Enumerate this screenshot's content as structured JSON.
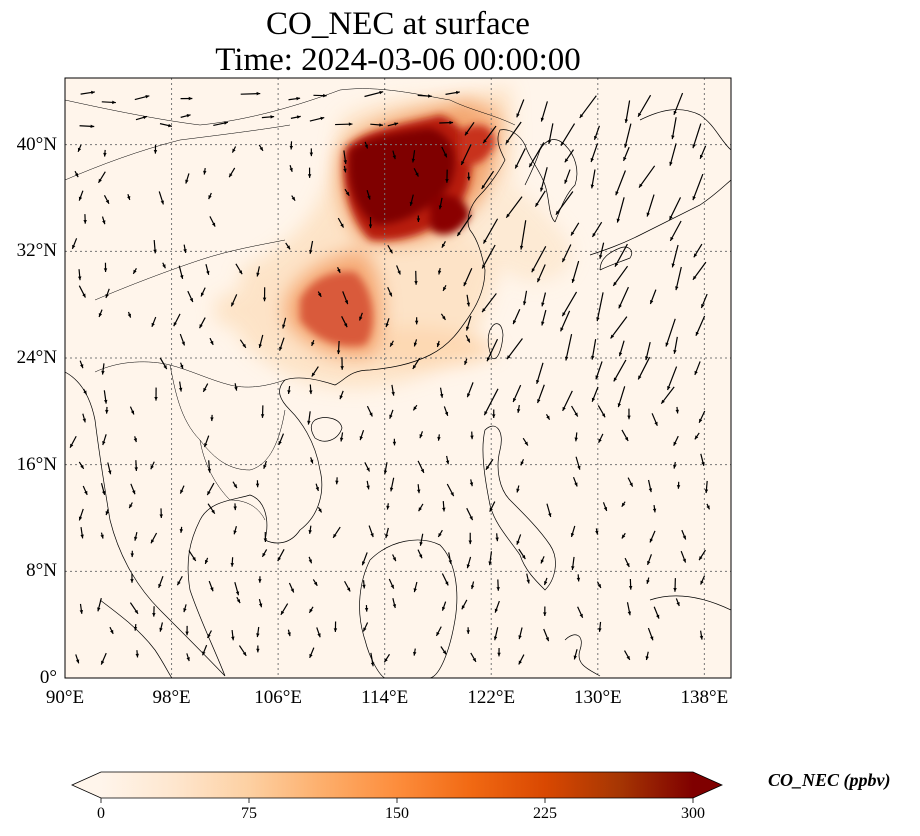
{
  "title": "CO_NEC at surface",
  "subtitle": "Time: 2024-03-06 00:00:00",
  "map": {
    "lon_range": [
      90,
      140
    ],
    "lat_range": [
      0,
      45
    ],
    "lat_ticks": [
      {
        "value": 0,
        "label": "0°"
      },
      {
        "value": 8,
        "label": "8°N"
      },
      {
        "value": 16,
        "label": "16°N"
      },
      {
        "value": 24,
        "label": "24°N"
      },
      {
        "value": 32,
        "label": "32°N"
      },
      {
        "value": 40,
        "label": "40°N"
      }
    ],
    "lon_ticks": [
      {
        "value": 90,
        "label": "90°E"
      },
      {
        "value": 98,
        "label": "98°E"
      },
      {
        "value": 106,
        "label": "106°E"
      },
      {
        "value": 114,
        "label": "114°E"
      },
      {
        "value": 122,
        "label": "122°E"
      },
      {
        "value": 130,
        "label": "130°E"
      },
      {
        "value": 138,
        "label": "138°E"
      }
    ],
    "gridlines": true,
    "background_color": "#fff5eb",
    "coastline_color": "#000000"
  },
  "colorbar": {
    "label": "CO_NEC (ppbv)",
    "min": 0,
    "max": 300,
    "ticks": [
      0,
      75,
      150,
      225,
      300
    ],
    "colormap": "OrRd",
    "stops": [
      "#fff5eb",
      "#fee6ce",
      "#fdd0a2",
      "#fdae6b",
      "#fd8d3c",
      "#f16913",
      "#d94801",
      "#a63603",
      "#7f0000"
    ],
    "extend": "both"
  }
}
